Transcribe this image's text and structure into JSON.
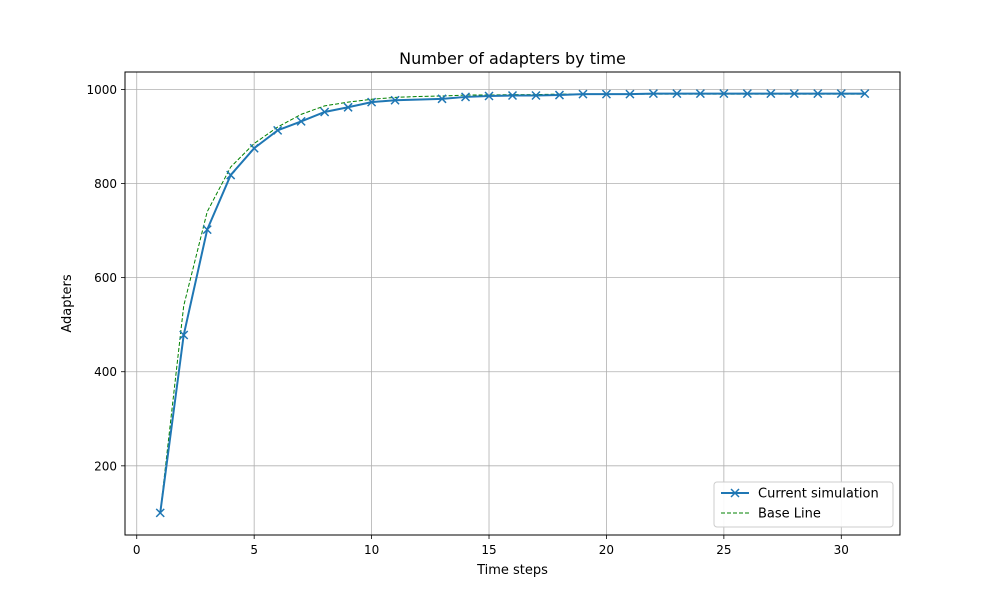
{
  "chart_data": {
    "type": "line",
    "title": "Number of adapters by time",
    "xlabel": "Time steps",
    "ylabel": "Adapters",
    "xlim": [
      -0.5,
      32.5
    ],
    "ylim": [
      53,
      1037
    ],
    "xticks": [
      0,
      5,
      10,
      15,
      20,
      25,
      30
    ],
    "yticks": [
      200,
      400,
      600,
      800,
      1000
    ],
    "grid": true,
    "legend_position": "lower-right",
    "series": [
      {
        "name": "Current simulation",
        "color": "#1f77b4",
        "line_style": "solid",
        "marker": "x",
        "x": [
          1,
          2,
          3,
          4,
          5,
          6,
          7,
          8,
          9,
          10,
          11,
          13,
          14,
          15,
          16,
          17,
          18,
          19,
          20,
          21,
          22,
          23,
          24,
          25,
          26,
          27,
          28,
          29,
          30,
          31
        ],
        "y": [
          100,
          478,
          702,
          818,
          875,
          913,
          932,
          952,
          962,
          973,
          977,
          980,
          984,
          986,
          987,
          987,
          988,
          990,
          990,
          990,
          991,
          991,
          991,
          991,
          991,
          991,
          991,
          991,
          991,
          991
        ]
      },
      {
        "name": "Base Line",
        "color": "#008000",
        "line_style": "dashed",
        "marker": "none",
        "x": [
          1,
          2,
          3,
          4,
          5,
          6,
          7,
          8,
          9,
          10,
          11,
          12,
          13,
          14,
          15,
          16,
          17,
          18,
          19,
          20,
          21,
          22,
          23,
          24,
          25,
          26,
          27,
          28,
          29,
          30,
          31
        ],
        "y": [
          100,
          540,
          740,
          835,
          885,
          920,
          947,
          965,
          973,
          979,
          983,
          985,
          986,
          988,
          988,
          989,
          989,
          990,
          990,
          990,
          990,
          990,
          990,
          990,
          990,
          990,
          990,
          990,
          990,
          990,
          990
        ]
      }
    ]
  }
}
